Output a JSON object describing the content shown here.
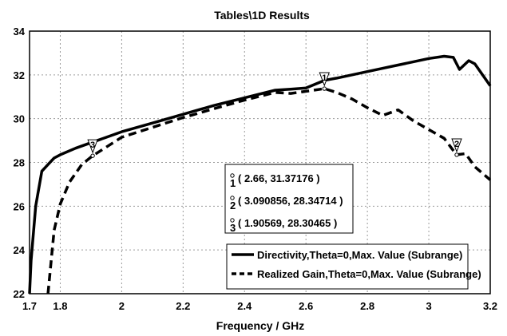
{
  "chart_data": {
    "type": "line",
    "title": "Tables\\1D Results",
    "xlabel": "Frequency / GHz",
    "ylabel": "",
    "xlim": [
      1.7,
      3.2
    ],
    "ylim": [
      22,
      34
    ],
    "xticks": [
      1.7,
      1.8,
      2,
      2.2,
      2.4,
      2.6,
      2.8,
      3,
      3.2
    ],
    "xtick_labels": [
      "1.7",
      "1.8",
      "2",
      "2.2",
      "2.4",
      "2.6",
      "2.8",
      "3",
      "3.2"
    ],
    "yticks": [
      22,
      24,
      26,
      28,
      30,
      32,
      34
    ],
    "ytick_labels": [
      "22",
      "24",
      "26",
      "28",
      "30",
      "32",
      "34"
    ],
    "grid": true,
    "legend_position": "bottom-right",
    "series": [
      {
        "name": "Directivity,Theta=0,Max. Value (Subrange)",
        "style": "solid",
        "color": "#000000",
        "x": [
          1.7,
          1.705,
          1.72,
          1.74,
          1.76,
          1.78,
          1.8,
          1.85,
          1.9,
          1.95,
          2.0,
          2.1,
          2.2,
          2.3,
          2.4,
          2.5,
          2.55,
          2.6,
          2.66,
          2.7,
          2.8,
          2.85,
          2.9,
          3.0,
          3.05,
          3.08,
          3.1,
          3.13,
          3.15,
          3.2
        ],
        "y": [
          22.0,
          23.5,
          26.0,
          27.6,
          27.9,
          28.2,
          28.35,
          28.65,
          28.9,
          29.15,
          29.4,
          29.8,
          30.2,
          30.6,
          30.95,
          31.3,
          31.35,
          31.4,
          31.75,
          31.85,
          32.15,
          32.3,
          32.45,
          32.75,
          32.85,
          32.8,
          32.25,
          32.65,
          32.5,
          31.5
        ]
      },
      {
        "name": "Realized Gain,Theta=0,Max. Value (Subrange)",
        "style": "dashed",
        "color": "#000000",
        "x": [
          1.76,
          1.78,
          1.8,
          1.83,
          1.87,
          1.905,
          2.0,
          2.1,
          2.2,
          2.3,
          2.4,
          2.5,
          2.55,
          2.6,
          2.66,
          2.7,
          2.75,
          2.8,
          2.85,
          2.9,
          2.95,
          3.0,
          3.05,
          3.09,
          3.12,
          3.15,
          3.2
        ],
        "y": [
          22.0,
          24.9,
          26.1,
          27.1,
          27.9,
          28.3,
          29.15,
          29.6,
          30.05,
          30.45,
          30.85,
          31.2,
          31.15,
          31.25,
          31.37,
          31.2,
          30.9,
          30.5,
          30.15,
          30.4,
          29.9,
          29.5,
          29.1,
          28.35,
          28.4,
          27.8,
          27.2
        ]
      }
    ],
    "markers": [
      {
        "label": "1",
        "x": 2.66,
        "y": 31.37176
      },
      {
        "label": "2",
        "x": 3.090856,
        "y": 28.34714
      },
      {
        "label": "3",
        "x": 1.90569,
        "y": 28.30465
      }
    ],
    "annotations": [
      {
        "label": "1",
        "text": "( 2.66, 31.37176 )"
      },
      {
        "label": "2",
        "text": "( 3.090856, 28.34714 )"
      },
      {
        "label": "3",
        "text": "( 1.90569, 28.30465 )"
      }
    ]
  }
}
